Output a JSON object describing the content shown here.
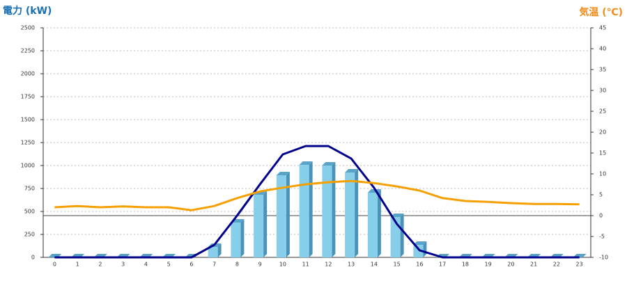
{
  "chart_data": {
    "type": "bar-line",
    "y_label": "電力 (kW)",
    "y2_label": "気温 (℃)",
    "y_label_color": "#1a6fb0",
    "y2_label_color": "#f08c1a",
    "categories": [
      "0",
      "1",
      "2",
      "3",
      "4",
      "5",
      "6",
      "7",
      "8",
      "9",
      "10",
      "11",
      "12",
      "13",
      "14",
      "15",
      "16",
      "17",
      "18",
      "19",
      "20",
      "21",
      "22",
      "23"
    ],
    "series": [
      {
        "type": "bar",
        "color": "#87ceeb",
        "values": [
          0,
          0,
          0,
          0,
          0,
          0,
          0,
          114,
          379,
          682,
          894,
          1008,
          1000,
          924,
          705,
          439,
          136,
          0,
          0,
          0,
          0,
          0,
          0,
          0
        ]
      },
      {
        "type": "line",
        "color": "#00008b",
        "values": [
          0,
          0,
          0,
          0,
          0,
          0,
          0,
          136,
          455,
          795,
          1121,
          1212,
          1212,
          1076,
          758,
          364,
          76,
          0,
          0,
          0,
          0,
          0,
          0,
          0
        ]
      },
      {
        "type": "line",
        "color": "#f5a000",
        "axis": "y2",
        "values": [
          2.0,
          2.3,
          2.0,
          2.2,
          2.0,
          2.0,
          1.3,
          2.3,
          4.2,
          5.8,
          6.7,
          7.5,
          8.0,
          8.3,
          7.8,
          7.0,
          6.0,
          4.2,
          3.5,
          3.3,
          3.0,
          2.8,
          2.8,
          2.7
        ]
      }
    ],
    "ylim": [
      0,
      2500
    ],
    "yticks": [
      0,
      250,
      500,
      750,
      1000,
      1250,
      1500,
      1750,
      2000,
      2250,
      2500
    ],
    "y2lim": [
      -10,
      45
    ],
    "y2ticks": [
      -10,
      -5,
      0,
      5,
      10,
      15,
      20,
      25,
      30,
      35,
      40,
      45
    ],
    "grid": true
  }
}
